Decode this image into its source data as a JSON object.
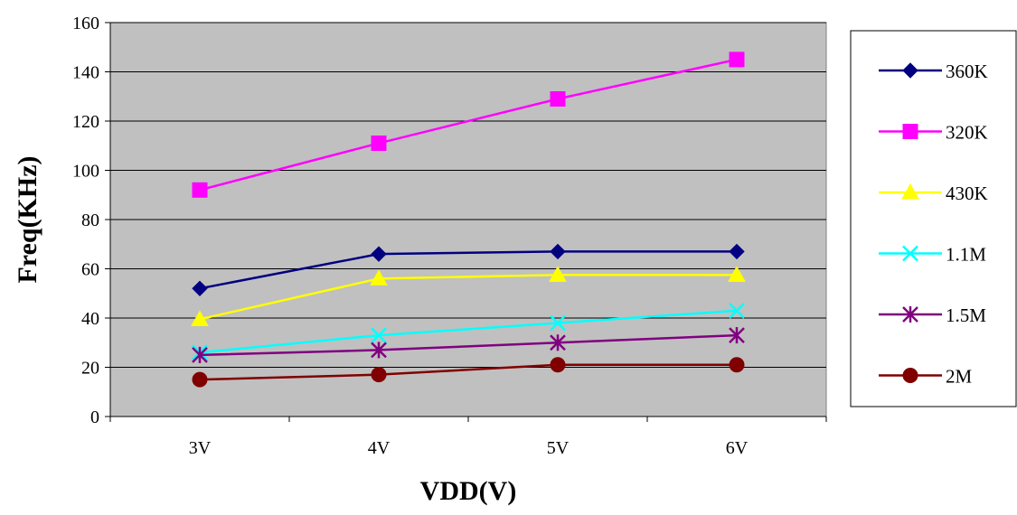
{
  "chart_data": {
    "type": "line",
    "title": "",
    "xlabel": "VDD(V)",
    "ylabel": "Freq(KHz)",
    "categories": [
      "3V",
      "4V",
      "5V",
      "6V"
    ],
    "ylim": [
      0,
      160
    ],
    "yticks": [
      0,
      20,
      40,
      60,
      80,
      100,
      120,
      140,
      160
    ],
    "grid": true,
    "legend_position": "right",
    "plot_background": "#c0c0c0",
    "series": [
      {
        "name": "360K",
        "values": [
          52,
          66,
          67,
          67
        ],
        "color": "#000080",
        "marker": "diamond"
      },
      {
        "name": "320K",
        "values": [
          92,
          111,
          129,
          145
        ],
        "color": "#ff00ff",
        "marker": "square"
      },
      {
        "name": "430K",
        "values": [
          39.5,
          56,
          57.5,
          57.5
        ],
        "color": "#ffff00",
        "marker": "triangle"
      },
      {
        "name": "1.1M",
        "values": [
          26,
          33,
          38,
          43
        ],
        "color": "#00ffff",
        "marker": "x"
      },
      {
        "name": "1.5M",
        "values": [
          25,
          27,
          30,
          33
        ],
        "color": "#800080",
        "marker": "asterisk"
      },
      {
        "name": "2M",
        "values": [
          15,
          17,
          21,
          21
        ],
        "color": "#800000",
        "marker": "circle"
      }
    ]
  }
}
